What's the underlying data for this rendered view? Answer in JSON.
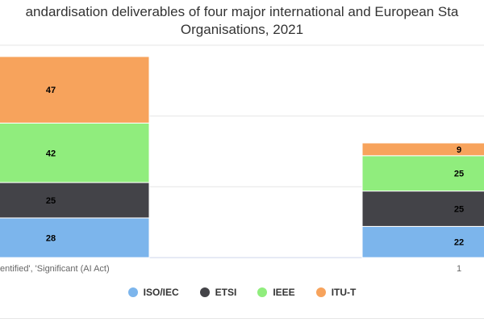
{
  "title": {
    "line1": "andardisation deliverables of four major international and European Sta",
    "line2": "Organisations, 2021"
  },
  "chart_data": {
    "type": "bar",
    "stacked": true,
    "categories": [
      "entified', 'Significant (AI Act)",
      "1"
    ],
    "series": [
      {
        "name": "ISO/IEC",
        "color": "#7cb5ec",
        "values": [
          28,
          22
        ]
      },
      {
        "name": "ETSI",
        "color": "#434348",
        "values": [
          25,
          25
        ]
      },
      {
        "name": "IEEE",
        "color": "#90ed7d",
        "values": [
          42,
          25
        ]
      },
      {
        "name": "ITU-T",
        "color": "#f7a35c",
        "values": [
          47,
          9
        ]
      }
    ],
    "ylim": [
      0,
      150
    ],
    "grid": true,
    "legend": "bottom-center"
  }
}
